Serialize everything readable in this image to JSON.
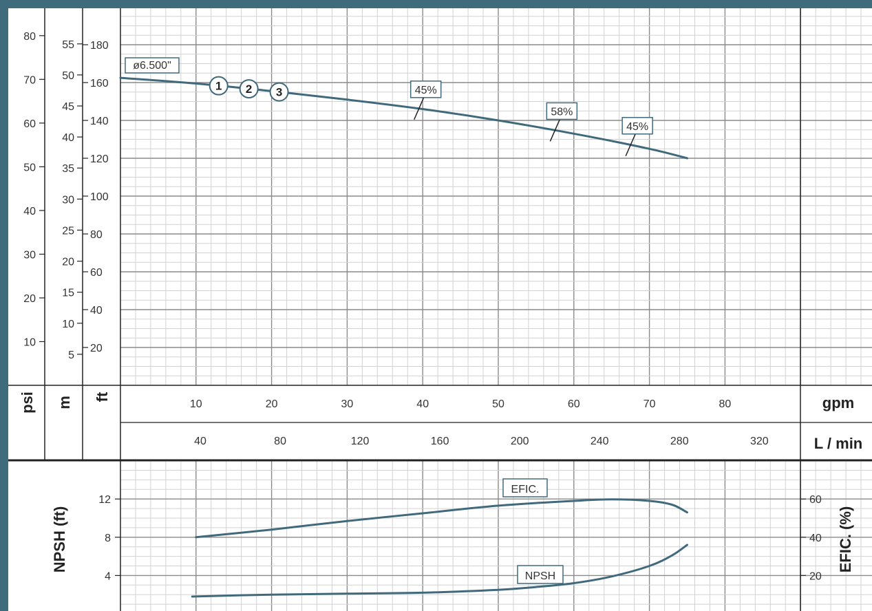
{
  "colors": {
    "frame": "#3f6b7d",
    "curve": "#41697c",
    "grid_major": "#8a8a8a",
    "grid_minor": "#d2d2d2",
    "axis_line": "#222222"
  },
  "chart_data": [
    {
      "type": "line",
      "title": "",
      "x_unit_primary": "gpm",
      "x_unit_secondary": "L / min",
      "x_ticks_gpm": [
        10,
        20,
        30,
        40,
        50,
        60,
        70,
        80
      ],
      "x_ticks_lmin": [
        40,
        80,
        120,
        160,
        200,
        240,
        280,
        320
      ],
      "xlim_gpm": [
        0,
        90
      ],
      "ylim_ft": [
        0,
        200
      ],
      "y_axes": [
        {
          "unit": "psi",
          "ticks": [
            10,
            20,
            30,
            40,
            50,
            60,
            70,
            80
          ]
        },
        {
          "unit": "m",
          "ticks": [
            5,
            10,
            15,
            20,
            25,
            30,
            35,
            40,
            45,
            50,
            55
          ]
        },
        {
          "unit": "ft",
          "ticks": [
            20,
            40,
            60,
            80,
            100,
            120,
            140,
            160,
            180
          ]
        }
      ],
      "grid": true,
      "series": [
        {
          "name": "ø6.500\"",
          "x": [
            0,
            10,
            20,
            30,
            40,
            50,
            60,
            70,
            75
          ],
          "y": [
            162.5,
            159.5,
            155.5,
            151,
            146,
            140,
            133,
            125,
            120
          ]
        }
      ],
      "markers": [
        {
          "label": "1",
          "x": 13,
          "y": 158.5
        },
        {
          "label": "2",
          "x": 17,
          "y": 157.3
        },
        {
          "label": "3",
          "x": 21,
          "y": 155.5
        }
      ],
      "efficiency_marks": [
        {
          "label": "45%",
          "x": 39.5,
          "y": 146
        },
        {
          "label": "58%",
          "x": 57.5,
          "y": 135.5
        },
        {
          "label": "45%",
          "x": 67.5,
          "y": 126.5
        }
      ]
    },
    {
      "type": "line",
      "title": "",
      "xlim_gpm": [
        0,
        90
      ],
      "ylabel_left": "NPSH (ft)",
      "ylabel_right": "EFIC. (%)",
      "y_ticks_left": [
        4,
        8,
        12
      ],
      "y_ticks_right": [
        20,
        40,
        60
      ],
      "ylim_left": [
        0,
        16
      ],
      "grid": true,
      "series": [
        {
          "name": "EFIC.",
          "axis": "right",
          "x": [
            10,
            20,
            30,
            40,
            50,
            60,
            65,
            70,
            73,
            75
          ],
          "y": [
            40,
            44,
            48.5,
            52.5,
            56.5,
            59,
            59.8,
            59,
            57,
            53
          ]
        },
        {
          "name": "NPSH",
          "axis": "left",
          "x": [
            9.5,
            20,
            30,
            40,
            50,
            55,
            60,
            65,
            70,
            73,
            75
          ],
          "y": [
            1.8,
            2.0,
            2.1,
            2.2,
            2.5,
            2.8,
            3.2,
            3.9,
            5.0,
            6.1,
            7.2
          ]
        }
      ]
    }
  ]
}
